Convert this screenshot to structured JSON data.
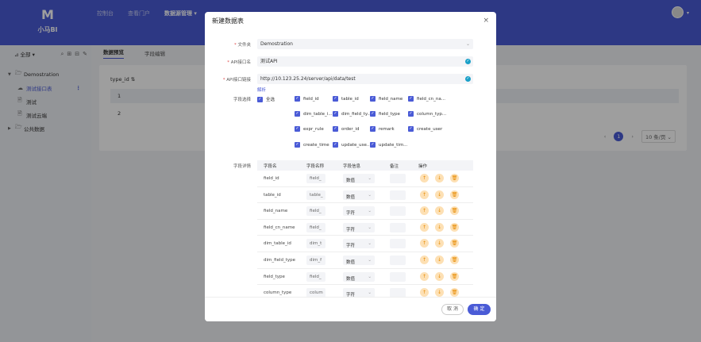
{
  "app": {
    "logo_text": "小马BI",
    "logo_mark": "M"
  },
  "nav": {
    "items": [
      "控制台",
      "查看门户",
      "数据源管理 ▾"
    ]
  },
  "sidebar": {
    "group_select": "全部",
    "tree": [
      {
        "label": "Demostration",
        "level": 0
      },
      {
        "label": "测试接口表",
        "level": 1
      },
      {
        "label": "测试",
        "level": 1
      },
      {
        "label": "测试云端",
        "level": 1
      },
      {
        "label": "公共数据",
        "level": 0
      }
    ],
    "more": "⋮"
  },
  "main": {
    "tabs": [
      "数据预览",
      "字段编辑"
    ],
    "grid": {
      "column": "type_id",
      "rows": [
        "1",
        "2"
      ]
    },
    "pager": {
      "prev": "‹",
      "page": "1",
      "next": "›",
      "page_size": "10 条/页 ⌄"
    }
  },
  "modal": {
    "title": "新建数据表",
    "close": "×",
    "folder_label": "文件夹",
    "folder_value": "Demostration",
    "api_name_label": "API接口名",
    "api_name_value": "测试API",
    "api_url_label": "API接口链接",
    "api_url_value": "http://10.123.25.24/server/api/data/test",
    "parse_link": "解析",
    "field_select_label": "字段选择",
    "select_all": "全选",
    "fields": [
      "field_id",
      "table_id",
      "field_name",
      "field_cn_na...",
      "dim_table_i...",
      "dim_field_ty...",
      "field_type",
      "column_typ...",
      "expr_rule",
      "order_id",
      "remark",
      "create_user",
      "create_time",
      "update_use...",
      "update_tim..."
    ],
    "detail_label": "字段详情",
    "table_headers": [
      "字段名",
      "字段名称",
      "字段信息",
      "备注",
      "操作"
    ],
    "rows": [
      {
        "name": "field_id",
        "cn": "field_",
        "type": "数值"
      },
      {
        "name": "table_id",
        "cn": "table_",
        "type": "数值"
      },
      {
        "name": "field_name",
        "cn": "field_",
        "type": "字符"
      },
      {
        "name": "field_cn_name",
        "cn": "field_",
        "type": "字符"
      },
      {
        "name": "dim_table_id",
        "cn": "dim_t",
        "type": "字符"
      },
      {
        "name": "dim_field_type",
        "cn": "dim_f",
        "type": "数值"
      },
      {
        "name": "field_type",
        "cn": "field_",
        "type": "数值"
      },
      {
        "name": "column_type",
        "cn": "colum",
        "type": "字符"
      }
    ],
    "cancel_label": "取 消",
    "ok_label": "确 定"
  }
}
